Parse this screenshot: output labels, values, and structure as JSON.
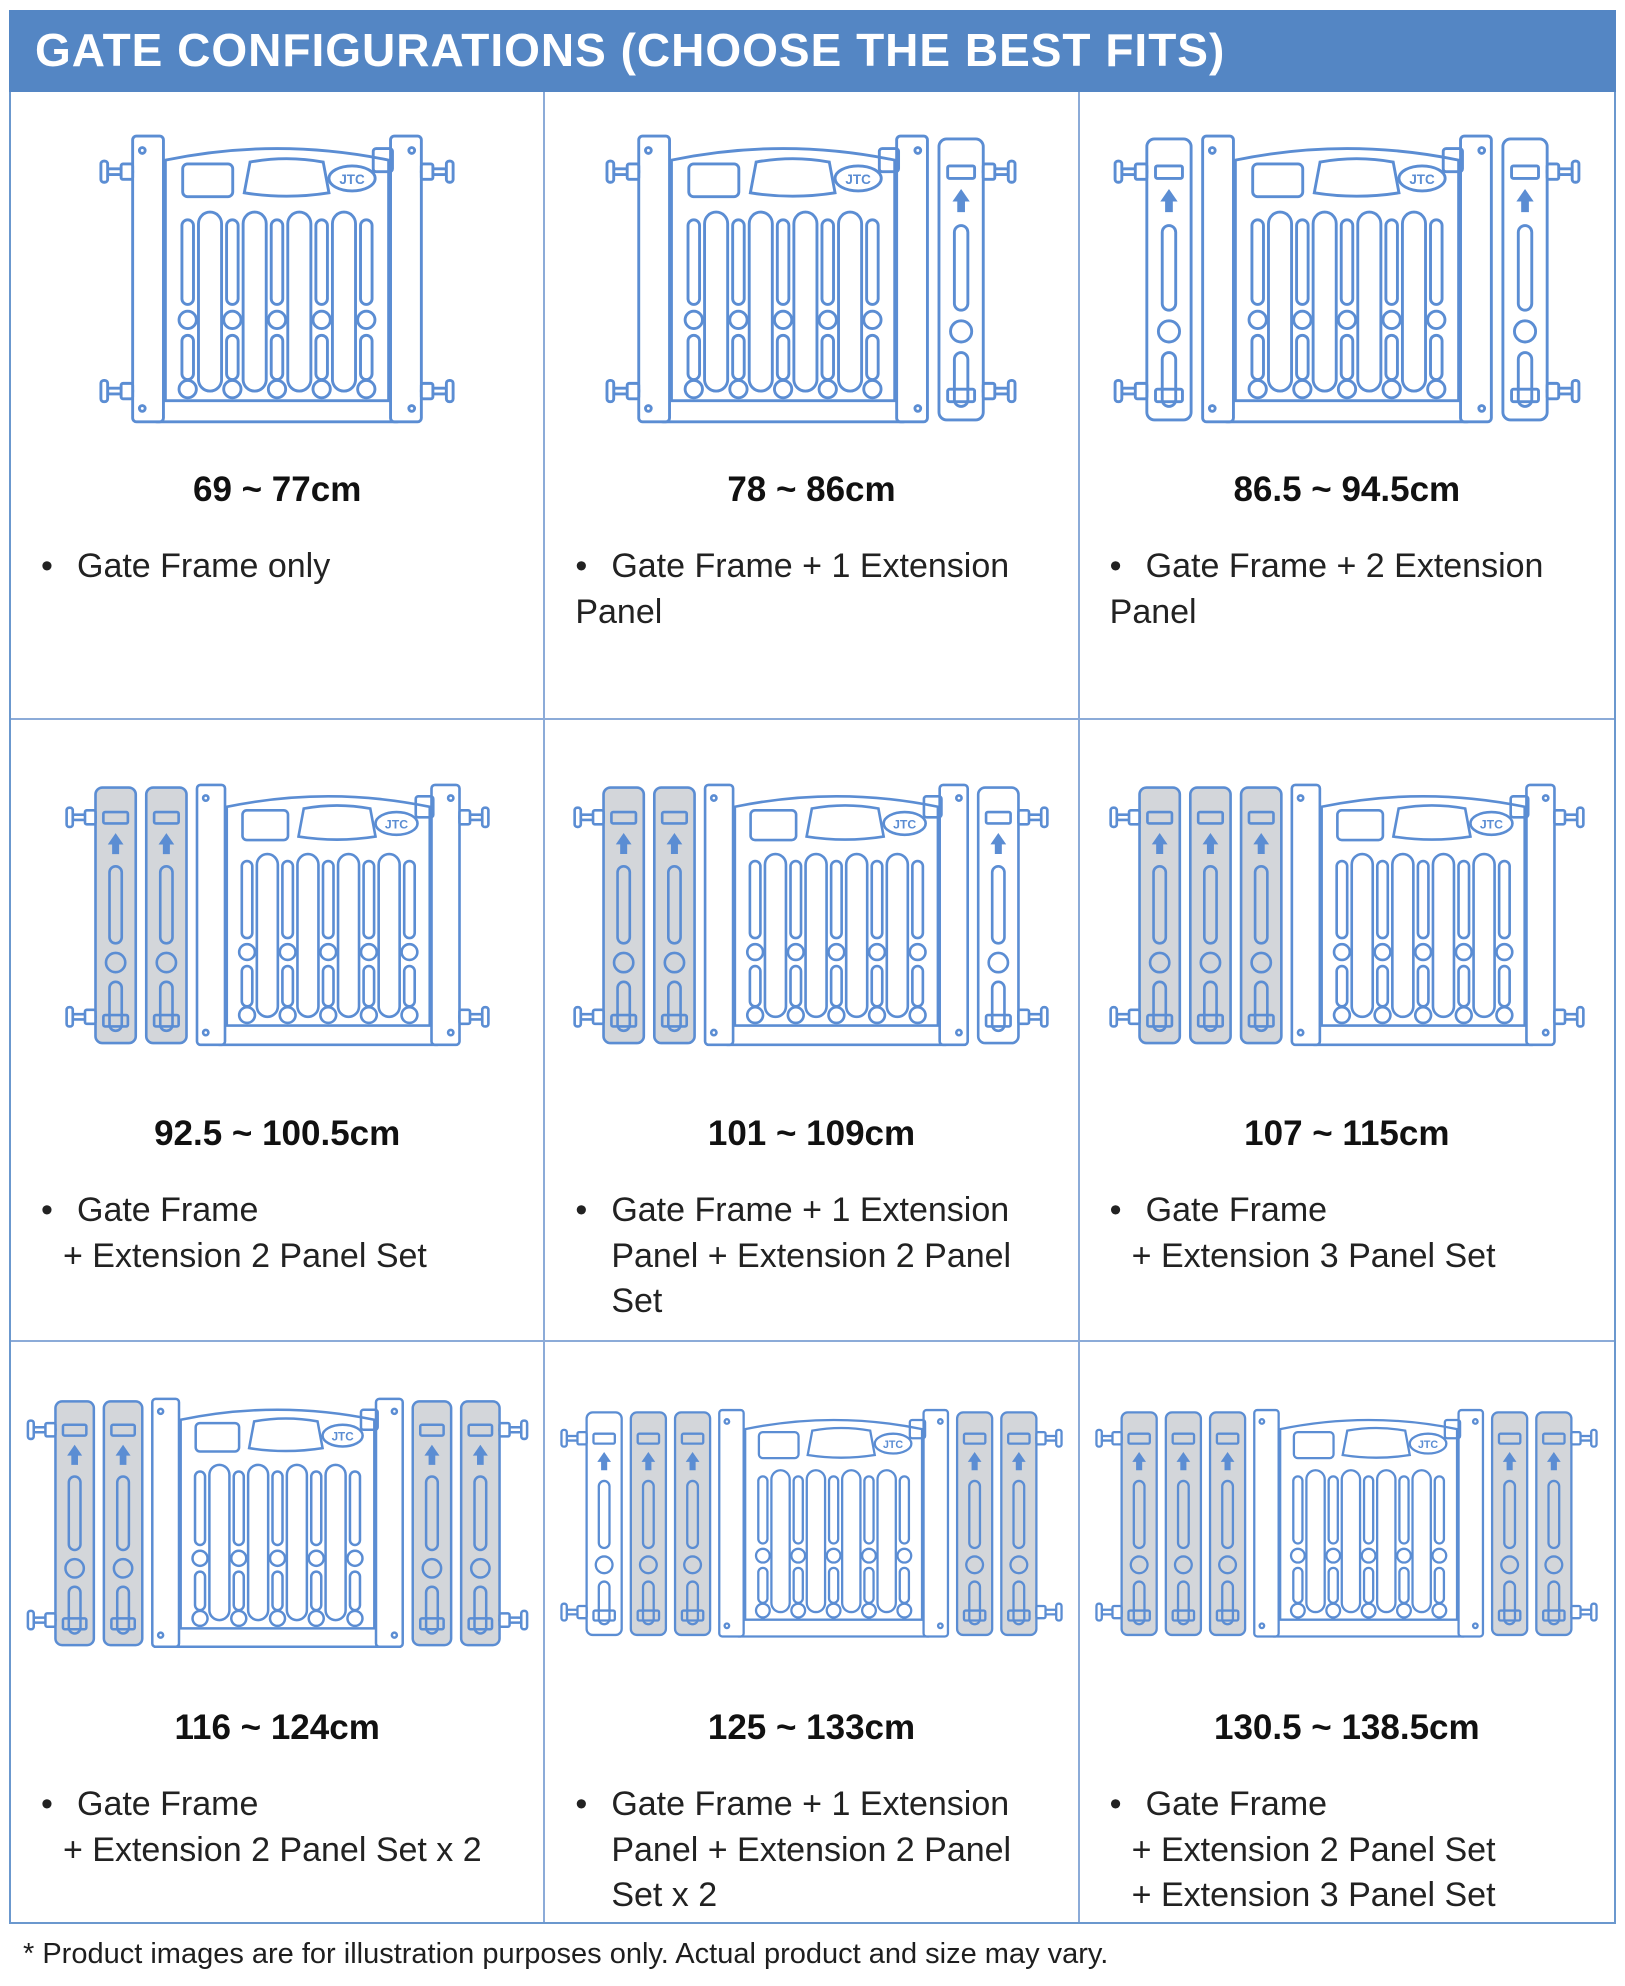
{
  "header": {
    "title": "GATE CONFIGURATIONS (CHOOSE THE BEST FITS)"
  },
  "brand": "JTC",
  "bullet_char": "•",
  "colors": {
    "header_bg": "#5486c4",
    "line_blue": "#5b8dd3",
    "grid_border": "#8cabd8",
    "outer_border": "#6b98ce",
    "panel_gray": "#d3d6da",
    "panel_white": "#ffffff",
    "text": "#1e1e1e"
  },
  "cells": [
    {
      "size_range": "69 ~ 77cm",
      "description": [
        {
          "text": "Gate Frame only",
          "indent": "b"
        }
      ],
      "illustration": {
        "left": [],
        "right": []
      }
    },
    {
      "size_range": "78 ~ 86cm",
      "description": [
        {
          "text": "Gate Frame + 1 Extension",
          "indent": "b"
        },
        {
          "text": "Panel",
          "indent": 0
        }
      ],
      "illustration": {
        "left": [],
        "right": [
          "white"
        ]
      }
    },
    {
      "size_range": "86.5 ~ 94.5cm",
      "description": [
        {
          "text": "Gate Frame + 2 Extension",
          "indent": "b"
        },
        {
          "text": "Panel",
          "indent": 0
        }
      ],
      "illustration": {
        "left": [
          "white"
        ],
        "right": [
          "white"
        ]
      }
    },
    {
      "size_range": "92.5 ~ 100.5cm",
      "description": [
        {
          "text": "Gate Frame",
          "indent": "b"
        },
        {
          "text": "+ Extension 2 Panel Set",
          "indent": 1
        }
      ],
      "illustration": {
        "left": [
          "gray",
          "gray"
        ],
        "right": []
      }
    },
    {
      "size_range": "101 ~ 109cm",
      "description": [
        {
          "text": "Gate Frame + 1 Extension",
          "indent": "b"
        },
        {
          "text": "Panel + Extension 2 Panel",
          "indent": 2
        },
        {
          "text": "Set",
          "indent": 2
        }
      ],
      "illustration": {
        "left": [
          "gray",
          "gray"
        ],
        "right": [
          "white"
        ]
      }
    },
    {
      "size_range": "107 ~ 115cm",
      "description": [
        {
          "text": "Gate Frame",
          "indent": "b"
        },
        {
          "text": "+ Extension 3 Panel Set",
          "indent": 1
        }
      ],
      "illustration": {
        "left": [
          "gray",
          "gray",
          "gray"
        ],
        "right": []
      }
    },
    {
      "size_range": "116 ~ 124cm",
      "description": [
        {
          "text": "Gate Frame",
          "indent": "b"
        },
        {
          "text": "+ Extension 2 Panel Set x 2",
          "indent": 1
        }
      ],
      "illustration": {
        "left": [
          "gray",
          "gray"
        ],
        "right": [
          "gray",
          "gray"
        ]
      }
    },
    {
      "size_range": "125 ~ 133cm",
      "description": [
        {
          "text": "Gate Frame + 1 Extension",
          "indent": "b"
        },
        {
          "text": "Panel + Extension 2 Panel",
          "indent": 2
        },
        {
          "text": "Set x 2",
          "indent": 2
        }
      ],
      "illustration": {
        "left": [
          "white",
          "gray",
          "gray"
        ],
        "right": [
          "gray",
          "gray"
        ]
      }
    },
    {
      "size_range": "130.5 ~ 138.5cm",
      "description": [
        {
          "text": "Gate Frame",
          "indent": "b"
        },
        {
          "text": "+ Extension 2 Panel Set",
          "indent": 1
        },
        {
          "text": "+ Extension 3 Panel Set",
          "indent": 1
        }
      ],
      "illustration": {
        "left": [
          "gray",
          "gray",
          "gray"
        ],
        "right": [
          "gray",
          "gray"
        ]
      }
    }
  ],
  "footnote": "* Product images are for illustration purposes only. Actual product and size may vary."
}
